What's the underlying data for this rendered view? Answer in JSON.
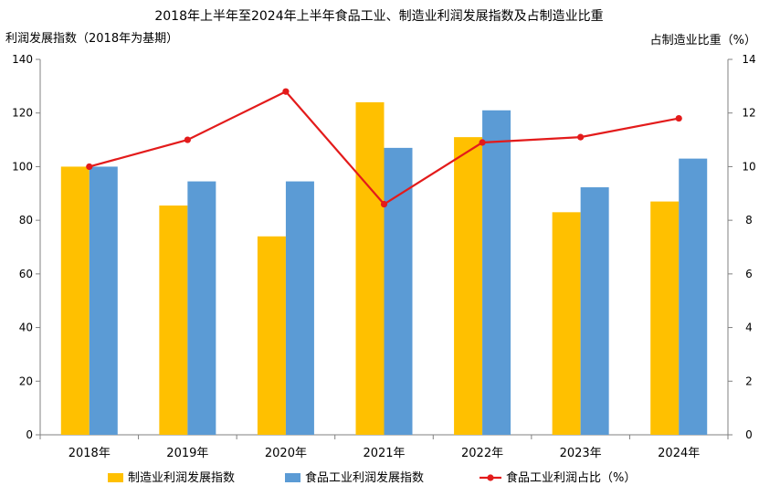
{
  "chart_data": {
    "type": "bar",
    "title": "2018年上半年至2024年上半年食品工业、制造业利润发展指数及占制造业比重",
    "ylabel_left": "利润发展指数（2018年为基期）",
    "ylabel_right": "占制造业比重（%）",
    "categories": [
      "2018年",
      "2019年",
      "2020年",
      "2021年",
      "2022年",
      "2023年",
      "2024年"
    ],
    "ylim_left": [
      0,
      140
    ],
    "ylim_right": [
      0,
      14
    ],
    "yticks_left": [
      "0",
      "20",
      "40",
      "60",
      "80",
      "100",
      "120",
      "140"
    ],
    "yticks_right": [
      "0",
      "2",
      "4",
      "6",
      "8",
      "10",
      "12",
      "14"
    ],
    "grid": false,
    "legend_position": "bottom",
    "series": [
      {
        "name": "制造业利润发展指数",
        "kind": "bar",
        "axis": "left",
        "color": "#FFC000",
        "values": [
          100,
          85.5,
          74,
          124,
          111,
          83,
          87
        ]
      },
      {
        "name": "食品工业利润发展指数",
        "kind": "bar",
        "axis": "left",
        "color": "#5B9BD5",
        "values": [
          100,
          94.5,
          94.5,
          107,
          121,
          92.3,
          103
        ]
      },
      {
        "name": "食品工业利润占比（%）",
        "kind": "line",
        "axis": "right",
        "color": "#E31B1B",
        "values": [
          10,
          11,
          12.8,
          8.6,
          10.9,
          11.1,
          11.8
        ]
      }
    ]
  }
}
